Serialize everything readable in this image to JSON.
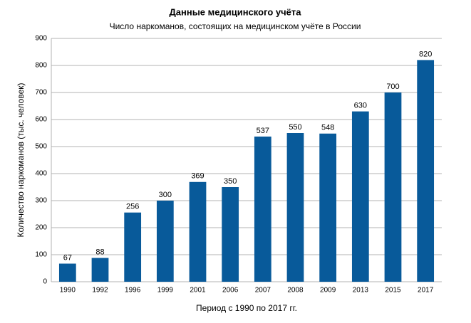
{
  "chart_data": {
    "type": "bar",
    "title": "Данные медицинского учёта",
    "subtitle": "Число наркоманов, состоящих на медицинском учёте в России",
    "y_label": "Количество наркоманов (тыс. человек)",
    "x_label": "Период с 1990 по 2017 гг.",
    "categories": [
      "1990",
      "1992",
      "1996",
      "1999",
      "2001",
      "2006",
      "2007",
      "2008",
      "2009",
      "2013",
      "2015",
      "2017"
    ],
    "values": [
      67,
      88,
      256,
      300,
      369,
      350,
      537,
      550,
      548,
      630,
      700,
      820
    ],
    "color": "#085a9a",
    "ylim": [
      0,
      900
    ],
    "yticks": [
      0,
      100,
      200,
      300,
      400,
      500,
      600,
      700,
      800,
      900
    ],
    "grid": true
  }
}
